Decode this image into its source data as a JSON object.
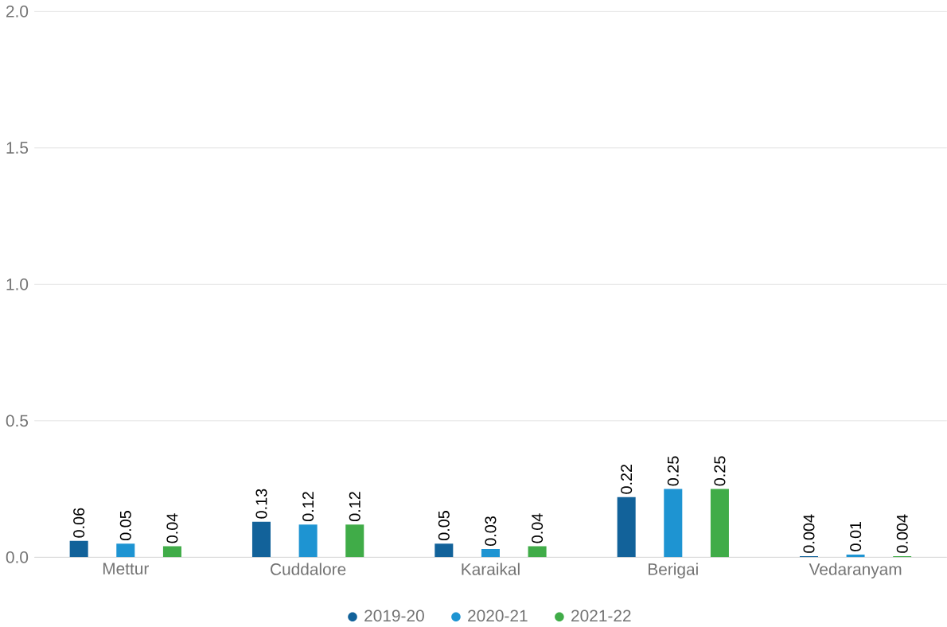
{
  "chart_data": {
    "type": "bar",
    "categories": [
      "Mettur",
      "Cuddalore",
      "Karaikal",
      "Berigai",
      "Vedaranyam"
    ],
    "series": [
      {
        "name": "2019-20",
        "color": "#12629a",
        "values": [
          0.06,
          0.13,
          0.05,
          0.22,
          0.004
        ]
      },
      {
        "name": "2020-21",
        "color": "#1e94d2",
        "values": [
          0.05,
          0.12,
          0.03,
          0.25,
          0.01
        ]
      },
      {
        "name": "2021-22",
        "color": "#40ac48",
        "values": [
          0.04,
          0.12,
          0.04,
          0.25,
          0.004
        ]
      }
    ],
    "ylim": [
      0,
      2.0
    ],
    "yticks": [
      {
        "value": 0,
        "label": "0.0"
      },
      {
        "value": 0.5,
        "label": "0.5"
      },
      {
        "value": 1.0,
        "label": "1.0"
      },
      {
        "value": 1.5,
        "label": "1.5"
      },
      {
        "value": 2.0,
        "label": "2.0"
      }
    ],
    "grid": "y",
    "legend": "bottom",
    "data_labels": true
  }
}
